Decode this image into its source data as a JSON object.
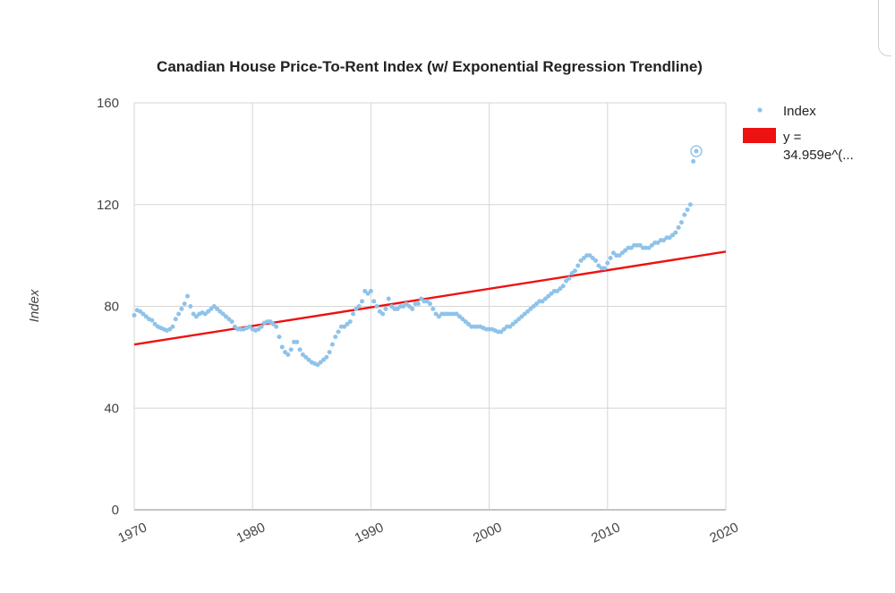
{
  "colors": {
    "points": "#8ec3ea",
    "trend": "#ee1111",
    "grid": "#d6d6d6",
    "axis": "#888888"
  },
  "chart_data": {
    "type": "scatter",
    "title": "Canadian House Price-To-Rent Index (w/ Exponential Regression Trendline)",
    "xlabel": "",
    "ylabel": "Index",
    "xlim": [
      1970,
      2020
    ],
    "ylim": [
      0,
      160
    ],
    "x_ticks": [
      "1970",
      "1980",
      "1990",
      "2000",
      "2010",
      "2020"
    ],
    "y_ticks": [
      "0",
      "40",
      "80",
      "120",
      "160"
    ],
    "grid": true,
    "legend_position": "right",
    "series": [
      {
        "name": "Index",
        "kind": "points",
        "points": [
          [
            1970.0,
            76.5
          ],
          [
            1970.25,
            78.5
          ],
          [
            1970.5,
            78
          ],
          [
            1970.75,
            77
          ],
          [
            1971.0,
            76
          ],
          [
            1971.25,
            75
          ],
          [
            1971.5,
            74.5
          ],
          [
            1971.75,
            73
          ],
          [
            1972.0,
            72
          ],
          [
            1972.25,
            71.5
          ],
          [
            1972.5,
            71
          ],
          [
            1972.75,
            70.5
          ],
          [
            1973.0,
            71
          ],
          [
            1973.25,
            72
          ],
          [
            1973.5,
            75
          ],
          [
            1973.75,
            77
          ],
          [
            1974.0,
            79
          ],
          [
            1974.25,
            81
          ],
          [
            1974.5,
            84
          ],
          [
            1974.75,
            80
          ],
          [
            1975.0,
            77
          ],
          [
            1975.25,
            76
          ],
          [
            1975.5,
            77
          ],
          [
            1975.75,
            77.5
          ],
          [
            1976.0,
            77
          ],
          [
            1976.25,
            78
          ],
          [
            1976.5,
            79
          ],
          [
            1976.75,
            80
          ],
          [
            1977.0,
            79
          ],
          [
            1977.25,
            78
          ],
          [
            1977.5,
            77
          ],
          [
            1977.75,
            76
          ],
          [
            1978.0,
            75
          ],
          [
            1978.25,
            74
          ],
          [
            1978.5,
            72
          ],
          [
            1978.75,
            71
          ],
          [
            1979.0,
            71
          ],
          [
            1979.25,
            71
          ],
          [
            1979.5,
            71.5
          ],
          [
            1979.75,
            72
          ],
          [
            1980.0,
            71
          ],
          [
            1980.25,
            70.5
          ],
          [
            1980.5,
            71
          ],
          [
            1980.75,
            72
          ],
          [
            1981.0,
            73.5
          ],
          [
            1981.25,
            74
          ],
          [
            1981.5,
            74
          ],
          [
            1981.75,
            73
          ],
          [
            1982.0,
            72
          ],
          [
            1982.25,
            68
          ],
          [
            1982.5,
            64
          ],
          [
            1982.75,
            62
          ],
          [
            1983.0,
            61
          ],
          [
            1983.25,
            63
          ],
          [
            1983.5,
            66
          ],
          [
            1983.75,
            66
          ],
          [
            1984.0,
            63
          ],
          [
            1984.25,
            61
          ],
          [
            1984.5,
            60
          ],
          [
            1984.75,
            59
          ],
          [
            1985.0,
            58
          ],
          [
            1985.25,
            57.5
          ],
          [
            1985.5,
            57
          ],
          [
            1985.75,
            58
          ],
          [
            1986.0,
            59
          ],
          [
            1986.25,
            60
          ],
          [
            1986.5,
            62
          ],
          [
            1986.75,
            65
          ],
          [
            1987.0,
            68
          ],
          [
            1987.25,
            70
          ],
          [
            1987.5,
            72
          ],
          [
            1987.75,
            72
          ],
          [
            1988.0,
            73
          ],
          [
            1988.25,
            74
          ],
          [
            1988.5,
            77
          ],
          [
            1988.75,
            79
          ],
          [
            1989.0,
            80
          ],
          [
            1989.25,
            82
          ],
          [
            1989.5,
            86
          ],
          [
            1989.75,
            85
          ],
          [
            1990.0,
            86
          ],
          [
            1990.25,
            82
          ],
          [
            1990.5,
            80
          ],
          [
            1990.75,
            78
          ],
          [
            1991.0,
            77
          ],
          [
            1991.25,
            79
          ],
          [
            1991.5,
            83
          ],
          [
            1991.75,
            80
          ],
          [
            1992.0,
            79
          ],
          [
            1992.25,
            79
          ],
          [
            1992.5,
            80
          ],
          [
            1992.75,
            80
          ],
          [
            1993.0,
            81
          ],
          [
            1993.25,
            80
          ],
          [
            1993.5,
            79
          ],
          [
            1993.75,
            81
          ],
          [
            1994.0,
            81
          ],
          [
            1994.25,
            83
          ],
          [
            1994.5,
            82
          ],
          [
            1994.75,
            82
          ],
          [
            1995.0,
            81
          ],
          [
            1995.25,
            79
          ],
          [
            1995.5,
            77
          ],
          [
            1995.75,
            76
          ],
          [
            1996.0,
            77
          ],
          [
            1996.25,
            77
          ],
          [
            1996.5,
            77
          ],
          [
            1996.75,
            77
          ],
          [
            1997.0,
            77
          ],
          [
            1997.25,
            77
          ],
          [
            1997.5,
            76
          ],
          [
            1997.75,
            75
          ],
          [
            1998.0,
            74
          ],
          [
            1998.25,
            73
          ],
          [
            1998.5,
            72
          ],
          [
            1998.75,
            72
          ],
          [
            1999.0,
            72
          ],
          [
            1999.25,
            72
          ],
          [
            1999.5,
            71.5
          ],
          [
            1999.75,
            71
          ],
          [
            2000.0,
            71
          ],
          [
            2000.25,
            71
          ],
          [
            2000.5,
            70.5
          ],
          [
            2000.75,
            70
          ],
          [
            2001.0,
            70
          ],
          [
            2001.25,
            71
          ],
          [
            2001.5,
            72
          ],
          [
            2001.75,
            72
          ],
          [
            2002.0,
            73
          ],
          [
            2002.25,
            74
          ],
          [
            2002.5,
            75
          ],
          [
            2002.75,
            76
          ],
          [
            2003.0,
            77
          ],
          [
            2003.25,
            78
          ],
          [
            2003.5,
            79
          ],
          [
            2003.75,
            80
          ],
          [
            2004.0,
            81
          ],
          [
            2004.25,
            82
          ],
          [
            2004.5,
            82
          ],
          [
            2004.75,
            83
          ],
          [
            2005.0,
            84
          ],
          [
            2005.25,
            85
          ],
          [
            2005.5,
            86
          ],
          [
            2005.75,
            86
          ],
          [
            2006.0,
            87
          ],
          [
            2006.25,
            88
          ],
          [
            2006.5,
            90
          ],
          [
            2006.75,
            91
          ],
          [
            2007.0,
            93
          ],
          [
            2007.25,
            94
          ],
          [
            2007.5,
            96
          ],
          [
            2007.75,
            98
          ],
          [
            2008.0,
            99
          ],
          [
            2008.25,
            100
          ],
          [
            2008.5,
            100
          ],
          [
            2008.75,
            99
          ],
          [
            2009.0,
            98
          ],
          [
            2009.25,
            96
          ],
          [
            2009.5,
            95
          ],
          [
            2009.75,
            95
          ],
          [
            2010.0,
            97
          ],
          [
            2010.25,
            99
          ],
          [
            2010.5,
            101
          ],
          [
            2010.75,
            100
          ],
          [
            2011.0,
            100
          ],
          [
            2011.25,
            101
          ],
          [
            2011.5,
            102
          ],
          [
            2011.75,
            103
          ],
          [
            2012.0,
            103
          ],
          [
            2012.25,
            104
          ],
          [
            2012.5,
            104
          ],
          [
            2012.75,
            104
          ],
          [
            2013.0,
            103
          ],
          [
            2013.25,
            103
          ],
          [
            2013.5,
            103
          ],
          [
            2013.75,
            104
          ],
          [
            2014.0,
            105
          ],
          [
            2014.25,
            105
          ],
          [
            2014.5,
            106
          ],
          [
            2014.75,
            106
          ],
          [
            2015.0,
            107
          ],
          [
            2015.25,
            107
          ],
          [
            2015.5,
            108
          ],
          [
            2015.75,
            109
          ],
          [
            2016.0,
            111
          ],
          [
            2016.25,
            113
          ],
          [
            2016.5,
            116
          ],
          [
            2016.75,
            118
          ],
          [
            2017.0,
            120
          ],
          [
            2017.25,
            137
          ],
          [
            2017.5,
            141
          ]
        ],
        "highlighted_point": [
          2017.5,
          141
        ]
      },
      {
        "name": "y = 34.959e^(…",
        "legend_lines": [
          "y =",
          "34.959e^(..."
        ],
        "kind": "trendline",
        "model": "exponential",
        "points": [
          [
            1970,
            65
          ],
          [
            2020,
            101.5
          ]
        ]
      }
    ]
  }
}
